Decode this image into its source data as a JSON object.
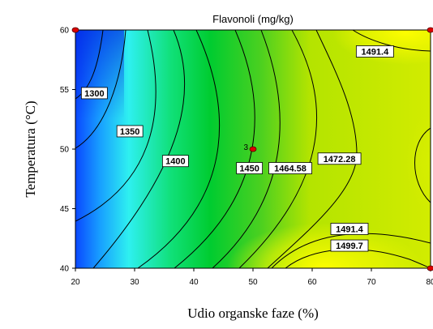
{
  "chart_data": {
    "type": "contour",
    "title": "Flavonoli (mg/kg)",
    "xlabel": "Udio organske faze (%)",
    "ylabel": "Temperatura (°C)",
    "xlim": [
      20,
      80
    ],
    "ylim": [
      40,
      60
    ],
    "x_ticks": [
      "20",
      "30",
      "40",
      "50",
      "60",
      "70",
      "80"
    ],
    "y_ticks": [
      "40",
      "45",
      "50",
      "55",
      "60"
    ],
    "grid": false,
    "color_scale": [
      "#0000ff",
      "#00ffff",
      "#00c800",
      "#ffff00"
    ],
    "contour_labels": [
      {
        "text": "1300",
        "x": 23.2,
        "y": 54.7
      },
      {
        "text": "1350",
        "x": 29.2,
        "y": 51.5
      },
      {
        "text": "1400",
        "x": 36.9,
        "y": 49.0
      },
      {
        "text": "1450",
        "x": 49.4,
        "y": 48.4
      },
      {
        "text": "1464.58",
        "x": 56.3,
        "y": 48.4
      },
      {
        "text": "1472.28",
        "x": 64.6,
        "y": 49.2
      },
      {
        "text": "1491.4",
        "x": 70.6,
        "y": 58.2
      },
      {
        "text": "1491.4",
        "x": 66.3,
        "y": 43.3
      },
      {
        "text": "1499.7",
        "x": 66.3,
        "y": 41.9
      }
    ],
    "design_points": [
      {
        "x": 20,
        "y": 60,
        "label": ""
      },
      {
        "x": 80,
        "y": 60,
        "label": ""
      },
      {
        "x": 50,
        "y": 50,
        "label": "3"
      },
      {
        "x": 80,
        "y": 40,
        "label": ""
      }
    ]
  }
}
